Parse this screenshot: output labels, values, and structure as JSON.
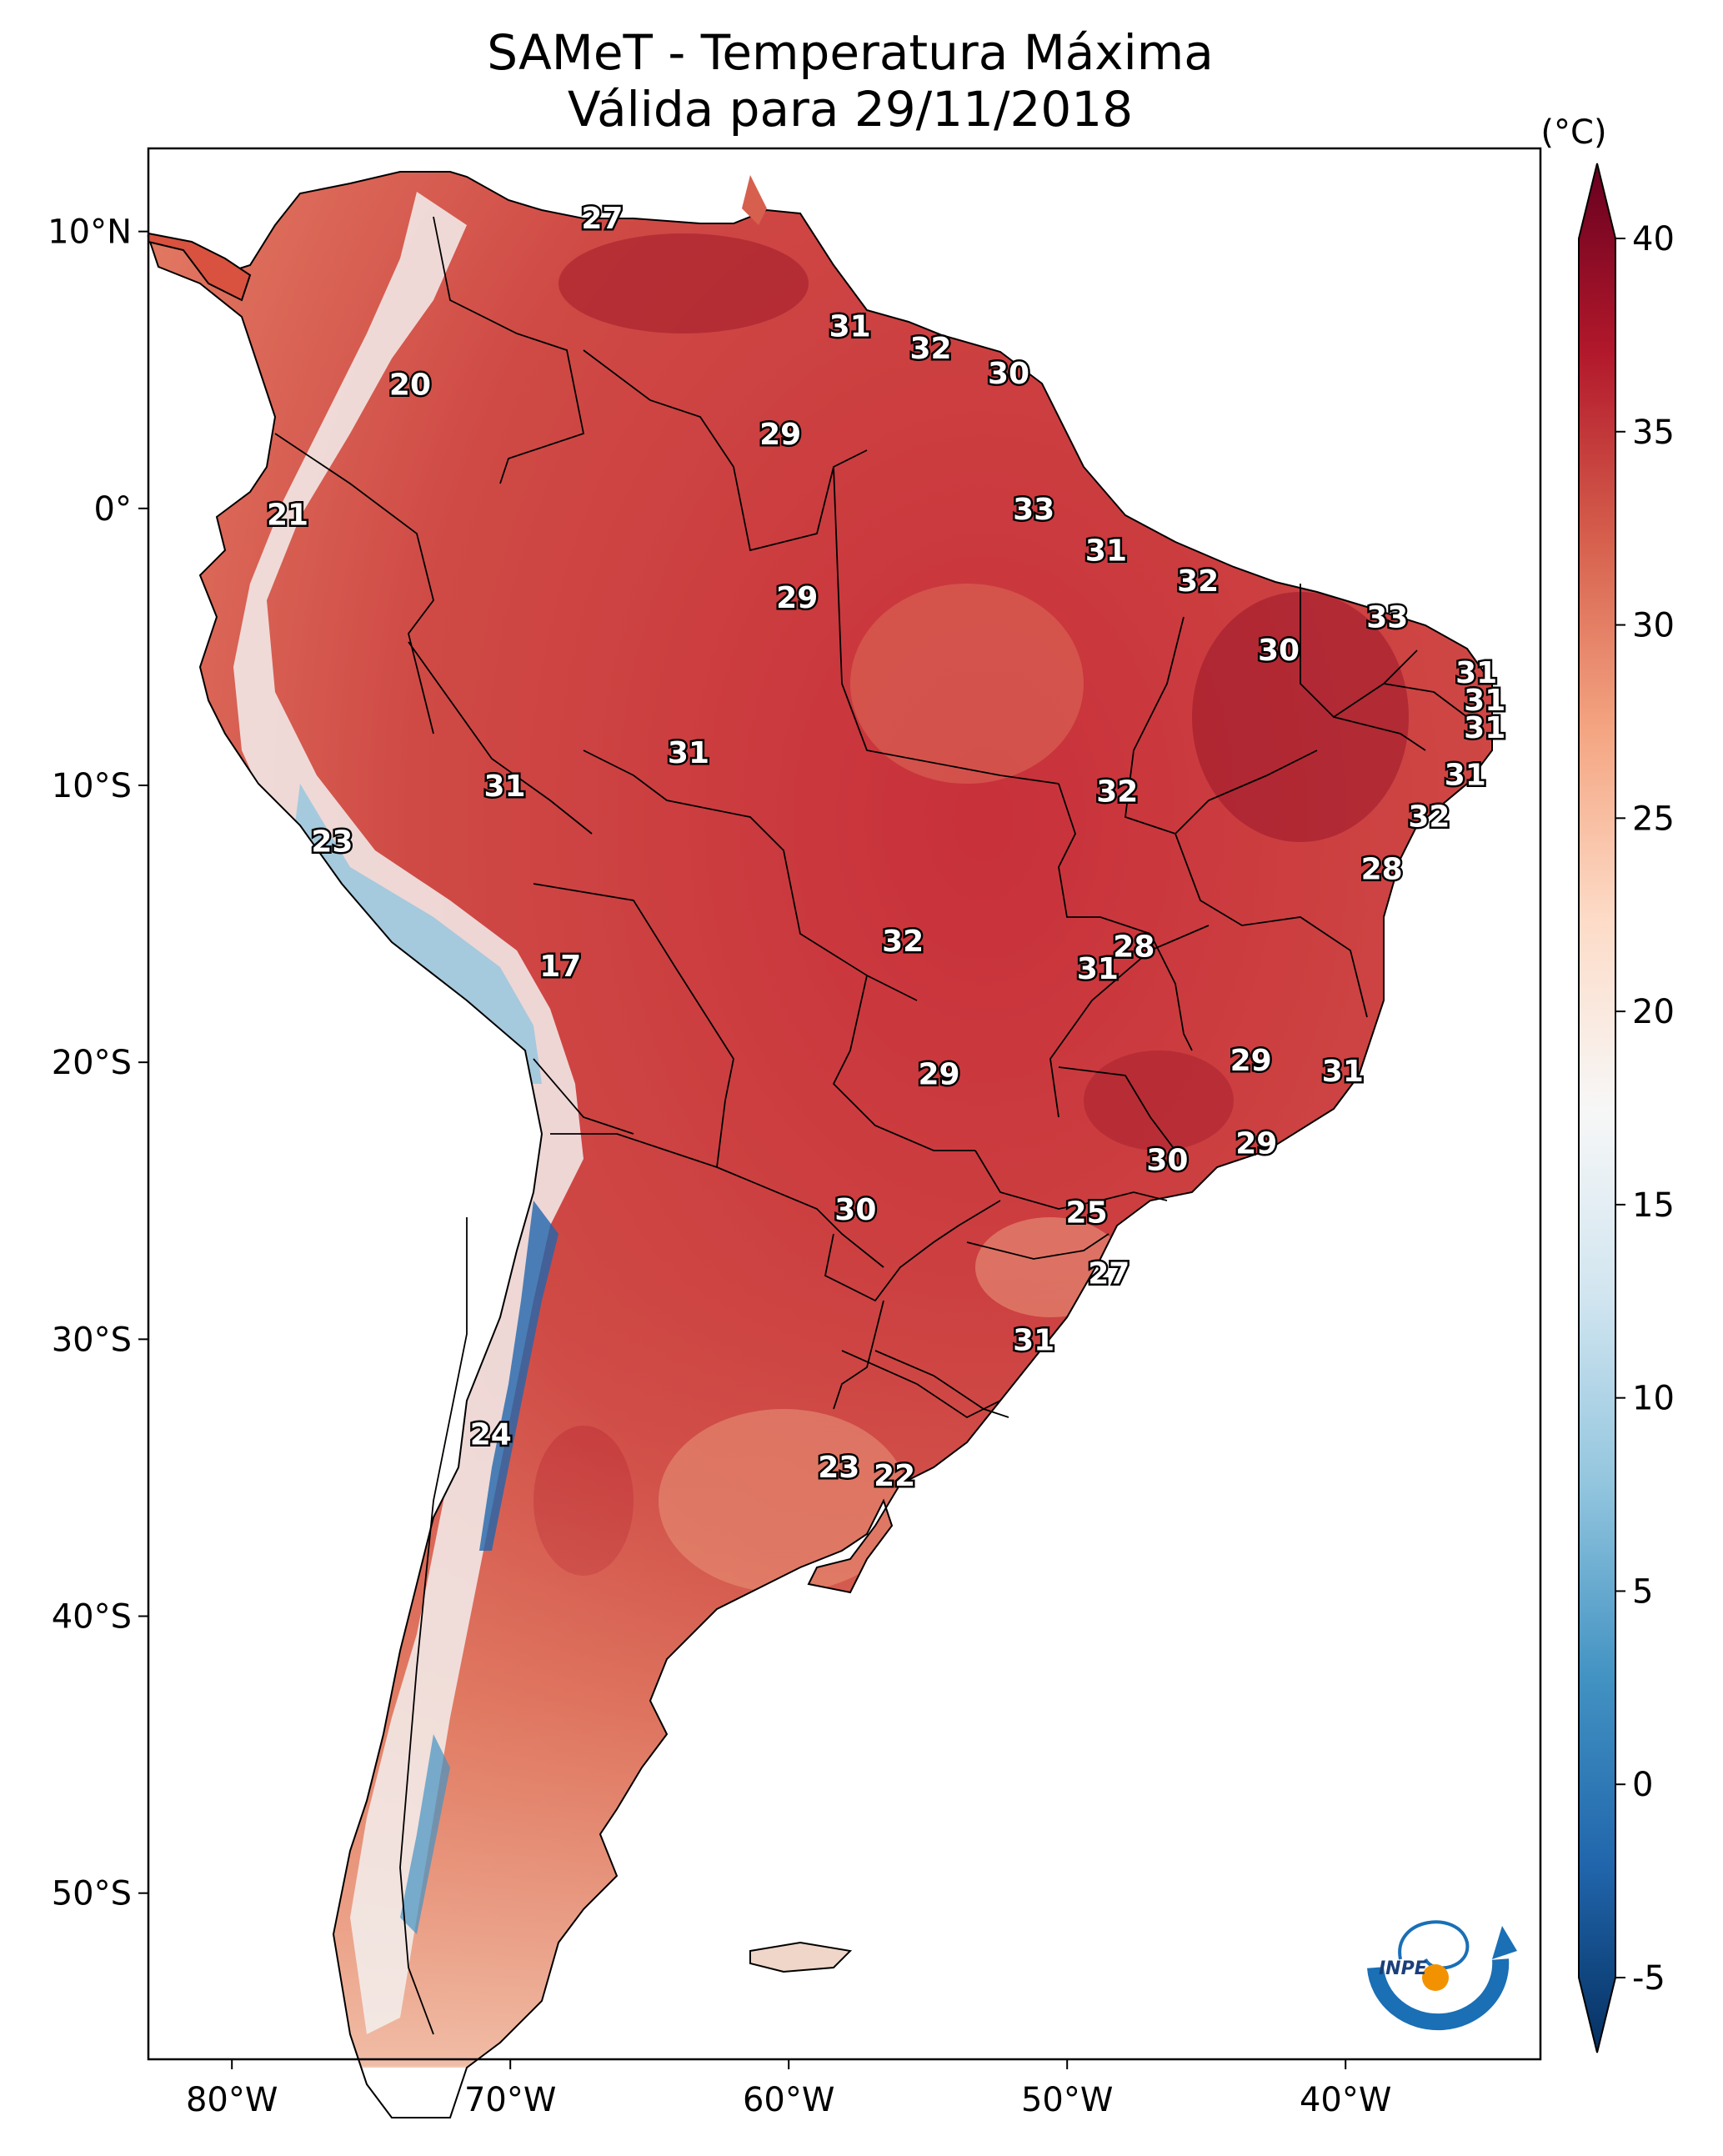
{
  "title": {
    "line1": "SAMeT - Temperatura Máxima",
    "line2": "Válida para 29/11/2018"
  },
  "map": {
    "lon_range": [
      -83,
      -33
    ],
    "lat_range": [
      -56,
      13
    ],
    "lon_ticks": [
      {
        "value": -80,
        "label": "80°W"
      },
      {
        "value": -70,
        "label": "70°W"
      },
      {
        "value": -60,
        "label": "60°W"
      },
      {
        "value": -50,
        "label": "50°W"
      },
      {
        "value": -40,
        "label": "40°W"
      }
    ],
    "lat_ticks": [
      {
        "value": 10,
        "label": "10°N"
      },
      {
        "value": 0,
        "label": "0°"
      },
      {
        "value": -10,
        "label": "10°S"
      },
      {
        "value": -20,
        "label": "20°S"
      },
      {
        "value": -30,
        "label": "30°S"
      },
      {
        "value": -40,
        "label": "40°S"
      },
      {
        "value": -50,
        "label": "50°S"
      }
    ],
    "station_values": [
      {
        "lon": -66.7,
        "lat": 10.5,
        "text": "27"
      },
      {
        "lon": -57.8,
        "lat": 6.6,
        "text": "31"
      },
      {
        "lon": -54.9,
        "lat": 5.8,
        "text": "32"
      },
      {
        "lon": -52.1,
        "lat": 4.9,
        "text": "30"
      },
      {
        "lon": -73.6,
        "lat": 4.5,
        "text": "20"
      },
      {
        "lon": -60.3,
        "lat": 2.7,
        "text": "29"
      },
      {
        "lon": -51.2,
        "lat": 0.0,
        "text": "33"
      },
      {
        "lon": -48.6,
        "lat": -1.5,
        "text": "31"
      },
      {
        "lon": -78.0,
        "lat": -0.2,
        "text": "21"
      },
      {
        "lon": -59.7,
        "lat": -3.2,
        "text": "29"
      },
      {
        "lon": -45.3,
        "lat": -2.6,
        "text": "32"
      },
      {
        "lon": -38.5,
        "lat": -3.9,
        "text": "33"
      },
      {
        "lon": -42.4,
        "lat": -5.1,
        "text": "30"
      },
      {
        "lon": -35.3,
        "lat": -5.9,
        "text": "31"
      },
      {
        "lon": -35.0,
        "lat": -6.9,
        "text": "31"
      },
      {
        "lon": -35.0,
        "lat": -7.9,
        "text": "31"
      },
      {
        "lon": -63.6,
        "lat": -8.8,
        "text": "31"
      },
      {
        "lon": -70.2,
        "lat": -10.0,
        "text": "31"
      },
      {
        "lon": -48.2,
        "lat": -10.2,
        "text": "32"
      },
      {
        "lon": -35.7,
        "lat": -9.6,
        "text": "31"
      },
      {
        "lon": -37.0,
        "lat": -11.1,
        "text": "32"
      },
      {
        "lon": -76.4,
        "lat": -12.0,
        "text": "23"
      },
      {
        "lon": -38.7,
        "lat": -13.0,
        "text": "28"
      },
      {
        "lon": -55.9,
        "lat": -15.6,
        "text": "32"
      },
      {
        "lon": -47.6,
        "lat": -15.8,
        "text": "28"
      },
      {
        "lon": -48.9,
        "lat": -16.6,
        "text": "31"
      },
      {
        "lon": -68.2,
        "lat": -16.5,
        "text": "17"
      },
      {
        "lon": -43.4,
        "lat": -19.9,
        "text": "29"
      },
      {
        "lon": -40.1,
        "lat": -20.3,
        "text": "31"
      },
      {
        "lon": -54.6,
        "lat": -20.4,
        "text": "29"
      },
      {
        "lon": -46.4,
        "lat": -23.5,
        "text": "30"
      },
      {
        "lon": -43.2,
        "lat": -22.9,
        "text": "29"
      },
      {
        "lon": -57.6,
        "lat": -25.3,
        "text": "30"
      },
      {
        "lon": -49.3,
        "lat": -25.4,
        "text": "25"
      },
      {
        "lon": -48.5,
        "lat": -27.6,
        "text": "27"
      },
      {
        "lon": -51.2,
        "lat": -30.0,
        "text": "31"
      },
      {
        "lon": -70.7,
        "lat": -33.4,
        "text": "24"
      },
      {
        "lon": -58.2,
        "lat": -34.6,
        "text": "23"
      },
      {
        "lon": -56.2,
        "lat": -34.9,
        "text": "22"
      }
    ]
  },
  "colorbar": {
    "unit": "(°C)",
    "min": -5,
    "max": 40,
    "ticks": [
      {
        "value": 40,
        "label": "40"
      },
      {
        "value": 35,
        "label": "35"
      },
      {
        "value": 30,
        "label": "30"
      },
      {
        "value": 25,
        "label": "25"
      },
      {
        "value": 20,
        "label": "20"
      },
      {
        "value": 15,
        "label": "15"
      },
      {
        "value": 10,
        "label": "10"
      },
      {
        "value": 5,
        "label": "5"
      },
      {
        "value": 0,
        "label": "0"
      },
      {
        "value": -5,
        "label": "-5"
      }
    ],
    "stops": [
      "#053061",
      "#2166ac",
      "#4393c3",
      "#92c5de",
      "#d1e5f0",
      "#f7f7f7",
      "#fddbc7",
      "#f4a582",
      "#d6604d",
      "#b2182b",
      "#67001f"
    ]
  },
  "logo": {
    "text": "INPE",
    "colors": {
      "blue": "#1a6fb5",
      "orange": "#f39200"
    }
  }
}
